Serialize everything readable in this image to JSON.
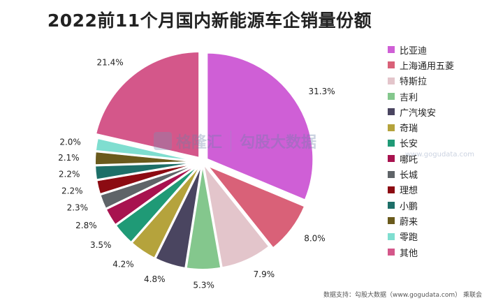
{
  "chart_data": {
    "type": "pie",
    "title": "2022前11个月国内新能源车企销量份额",
    "legend_position": "right",
    "slices": [
      {
        "name": "比亚迪",
        "value": 31.3,
        "label": "31.3%",
        "color": "#cf5fd6"
      },
      {
        "name": "上海通用五菱",
        "value": 8.0,
        "label": "8.0%",
        "color": "#d96178"
      },
      {
        "name": "特斯拉",
        "value": 7.9,
        "label": "7.9%",
        "color": "#e3c5cb"
      },
      {
        "name": "吉利",
        "value": 5.3,
        "label": "5.3%",
        "color": "#84c78d"
      },
      {
        "name": "广汽埃安",
        "value": 4.8,
        "label": "4.8%",
        "color": "#4a4560"
      },
      {
        "name": "奇瑞",
        "value": 4.2,
        "label": "4.2%",
        "color": "#b5a33c"
      },
      {
        "name": "长安",
        "value": 3.5,
        "label": "3.5%",
        "color": "#1f9a76"
      },
      {
        "name": "哪吒",
        "value": 2.8,
        "label": "2.8%",
        "color": "#a8124f"
      },
      {
        "name": "长城",
        "value": 2.3,
        "label": "2.3%",
        "color": "#5f6468"
      },
      {
        "name": "理想",
        "value": 2.2,
        "label": "2.2%",
        "color": "#8c0b12"
      },
      {
        "name": "小鹏",
        "value": 2.2,
        "label": "2.2%",
        "color": "#1d6f68"
      },
      {
        "name": "蔚来",
        "value": 2.1,
        "label": "2.1%",
        "color": "#6a5a1c"
      },
      {
        "name": "零跑",
        "value": 2.0,
        "label": "2.0%",
        "color": "#7fded0"
      },
      {
        "name": "其他",
        "value": 21.4,
        "label": "21.4%",
        "color": "#d4578a"
      }
    ]
  },
  "watermark": {
    "logo_text": "格隆汇",
    "text": "勾股大数据",
    "sub": "www.gogudata.com"
  },
  "source": "数据支持：勾股大数据（www.gogudata.com）  乘联会"
}
